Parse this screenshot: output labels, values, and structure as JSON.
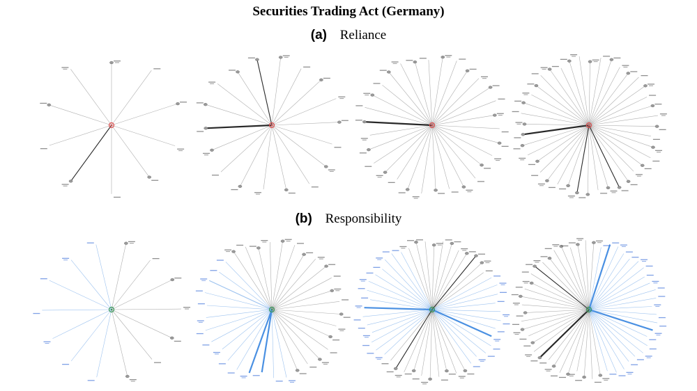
{
  "title": "Securities Trading Act (Germany)",
  "panels": [
    {
      "letter": "(a)",
      "name": "Reliance",
      "center_color": "#e05050"
    },
    {
      "letter": "(b)",
      "name": "Responsibility",
      "center_color": "#3a9a5a"
    }
  ],
  "colors": {
    "gray_edge": "#8a8a8a",
    "dark_edge": "#111111",
    "blue_edge": "#4a90e2",
    "node": "#9a9a9a",
    "gray_text": "#555555",
    "blue_text": "#3a6fd8"
  },
  "graphs": [
    {
      "row": 0,
      "spokes": 10,
      "blue": [],
      "dark": [
        6
      ],
      "thick": []
    },
    {
      "row": 0,
      "spokes": 18,
      "blue": [],
      "dark": [
        13,
        17
      ],
      "thick": [
        13
      ]
    },
    {
      "row": 0,
      "spokes": 30,
      "blue": [],
      "dark": [
        22
      ],
      "thick": [
        22
      ]
    },
    {
      "row": 0,
      "spokes": 40,
      "blue": [],
      "dark": [
        29,
        17,
        21
      ],
      "thick": [
        29
      ]
    },
    {
      "row": 1,
      "spokes": 14,
      "blue": [
        7,
        8,
        9,
        10,
        11,
        12,
        13
      ],
      "dark": [],
      "thick": []
    },
    {
      "row": 1,
      "spokes": 34,
      "blue": [
        15,
        16,
        17,
        18,
        19,
        20,
        21,
        22,
        23,
        24,
        25,
        26,
        27,
        28,
        29
      ],
      "dark": [
        27
      ],
      "thick": [
        17,
        18
      ]
    },
    {
      "row": 1,
      "spokes": 48,
      "blue": [
        8,
        9,
        10,
        11,
        12,
        13,
        14,
        15,
        16,
        17,
        18,
        19,
        30,
        31,
        32,
        33,
        34,
        35,
        36,
        37,
        38,
        39,
        40,
        41,
        42,
        43,
        44
      ],
      "dark": [
        5,
        28
      ],
      "thick": [
        15,
        36
      ]
    },
    {
      "row": 1,
      "spokes": 52,
      "blue": [
        1,
        2,
        3,
        4,
        5,
        6,
        7,
        8,
        9,
        10,
        11,
        12,
        13,
        14,
        15,
        16,
        17,
        18,
        19,
        20,
        21,
        22,
        23
      ],
      "dark": [
        32,
        44
      ],
      "thick": [
        2,
        15,
        32
      ]
    }
  ]
}
